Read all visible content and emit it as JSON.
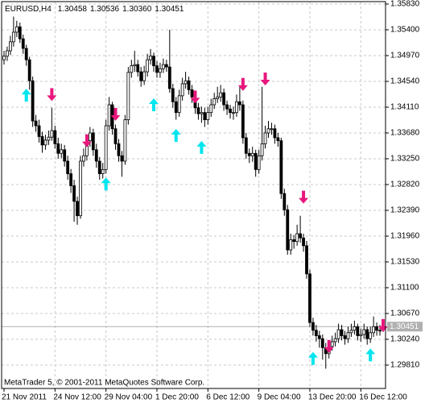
{
  "chart_data": {
    "type": "candlestick",
    "title": "EURUSD,H4",
    "header_ohlc": [
      "1.30458",
      "1.30536",
      "1.30360",
      "1.30451"
    ],
    "footer": "MetaTrader 5, © 2001-2011 MetaQuotes Software Corp.",
    "categories": [
      "21 Nov 2011",
      null,
      null,
      null,
      null,
      null,
      null,
      null,
      null,
      null,
      null,
      null,
      null,
      null,
      null,
      null,
      "24 Nov 12:00",
      null,
      null,
      null,
      null,
      null,
      null,
      null,
      null,
      null,
      null,
      null,
      null,
      null,
      null,
      null,
      "29 Nov 04:00",
      null,
      null,
      null,
      null,
      null,
      null,
      null,
      null,
      null,
      null,
      null,
      null,
      null,
      null,
      null,
      "1 Dec 20:00",
      null,
      null,
      null,
      null,
      null,
      null,
      null,
      null,
      null,
      null,
      null,
      null,
      null,
      null,
      null,
      "6 Dec 12:00",
      null,
      null,
      null,
      null,
      null,
      null,
      null,
      null,
      null,
      null,
      null,
      null,
      null,
      null,
      null,
      "9 Dec 04:00",
      null,
      null,
      null,
      null,
      null,
      null,
      null,
      null,
      null,
      null,
      null,
      null,
      null,
      null,
      null,
      "13 Dec 20:00",
      null,
      null,
      null,
      null,
      null,
      null,
      null,
      null,
      null,
      null,
      null,
      null,
      null,
      null,
      null,
      "16 Dec 12:00",
      null,
      null,
      null,
      null,
      null,
      null,
      null
    ],
    "open": [
      1.349,
      1.3496,
      1.3505,
      1.352,
      1.3536,
      1.3545,
      1.3525,
      1.3509,
      1.349,
      1.3455,
      1.3388,
      1.338,
      1.3362,
      1.3348,
      1.3356,
      1.3361,
      1.3372,
      1.335,
      1.3334,
      1.334,
      1.3321,
      1.33,
      1.328,
      1.3254,
      1.323,
      1.3321,
      1.333,
      1.3355,
      1.3368,
      1.334,
      1.3321,
      1.33,
      1.3307,
      1.338,
      1.3415,
      1.3375,
      1.335,
      1.333,
      1.3321,
      1.339,
      1.3469,
      1.348,
      1.3482,
      1.347,
      1.3455,
      1.347,
      1.349,
      1.3496,
      1.348,
      1.3469,
      1.3475,
      1.3482,
      1.3478,
      1.3442,
      1.342,
      1.3402,
      1.343,
      1.345,
      1.3455,
      1.344,
      1.3428,
      1.341,
      1.34,
      1.3402,
      1.339,
      1.3402,
      1.3415,
      1.3425,
      1.3428,
      1.3435,
      1.3415,
      1.3408,
      1.3402,
      1.3402,
      1.342,
      1.3415,
      1.336,
      1.3334,
      1.333,
      1.3334,
      1.3307,
      1.333,
      1.335,
      1.3368,
      1.3375,
      1.3375,
      1.336,
      1.3355,
      1.3267,
      1.324,
      1.3173,
      1.319,
      1.3187,
      1.32,
      1.3193,
      1.318,
      1.3133,
      1.3052,
      1.3039,
      1.303,
      1.3025,
      1.301,
      1.3,
      1.3012,
      1.302,
      1.3025,
      1.304,
      1.303,
      1.3025,
      1.3035,
      1.3039,
      1.3045,
      1.303,
      1.3032,
      1.304,
      1.3025,
      1.3035,
      1.3045,
      1.3039,
      1.30458
    ],
    "high": [
      1.3505,
      1.3512,
      1.353,
      1.3562,
      1.3555,
      1.3552,
      1.3532,
      1.3515,
      1.3495,
      1.3462,
      1.3398,
      1.339,
      1.337,
      1.3365,
      1.3372,
      1.341,
      1.338,
      1.336,
      1.335,
      1.3348,
      1.333,
      1.3308,
      1.329,
      1.3262,
      1.333,
      1.3342,
      1.3365,
      1.3378,
      1.3375,
      1.335,
      1.3328,
      1.3318,
      1.339,
      1.3428,
      1.342,
      1.3382,
      1.3358,
      1.3338,
      1.3398,
      1.3478,
      1.349,
      1.3505,
      1.349,
      1.3478,
      1.348,
      1.35,
      1.3508,
      1.3502,
      1.3488,
      1.3485,
      1.3492,
      1.349,
      1.354,
      1.345,
      1.3428,
      1.344,
      1.346,
      1.347,
      1.3462,
      1.3448,
      1.3435,
      1.3418,
      1.3412,
      1.341,
      1.3412,
      1.3425,
      1.3435,
      1.3445,
      1.3448,
      1.3442,
      1.3422,
      1.3415,
      1.3412,
      1.3432,
      1.3445,
      1.3422,
      1.3368,
      1.3342,
      1.3345,
      1.334,
      1.334,
      1.3445,
      1.338,
      1.3388,
      1.3385,
      1.3382,
      1.3368,
      1.336,
      1.3275,
      1.3248,
      1.32,
      1.3198,
      1.3215,
      1.323,
      1.32,
      1.3188,
      1.314,
      1.306,
      1.3048,
      1.3038,
      1.3032,
      1.3018,
      1.3022,
      1.303,
      1.3035,
      1.305,
      1.3048,
      1.3038,
      1.3045,
      1.305,
      1.3055,
      1.305,
      1.3042,
      1.305,
      1.3045,
      1.3045,
      1.3062,
      1.3052,
      1.3048,
      1.30536
    ],
    "low": [
      1.3482,
      1.3488,
      1.3498,
      1.3512,
      1.3528,
      1.3518,
      1.35,
      1.348,
      1.344,
      1.3378,
      1.337,
      1.3352,
      1.3335,
      1.334,
      1.3348,
      1.3355,
      1.3342,
      1.3325,
      1.3326,
      1.3312,
      1.329,
      1.3268,
      1.322,
      1.3215,
      1.3225,
      1.3312,
      1.3322,
      1.3345,
      1.333,
      1.331,
      1.329,
      1.3292,
      1.33,
      1.3372,
      1.3365,
      1.334,
      1.332,
      1.3295,
      1.3315,
      1.3382,
      1.346,
      1.347,
      1.3462,
      1.3445,
      1.3448,
      1.3462,
      1.3482,
      1.347,
      1.346,
      1.346,
      1.3468,
      1.347,
      1.3435,
      1.341,
      1.339,
      1.3395,
      1.3422,
      1.3442,
      1.3432,
      1.3418,
      1.34,
      1.339,
      1.3385,
      1.3378,
      1.3382,
      1.3395,
      1.3408,
      1.3418,
      1.342,
      1.3405,
      1.3398,
      1.3392,
      1.339,
      1.3395,
      1.3405,
      1.335,
      1.3325,
      1.3318,
      1.332,
      1.3295,
      1.33,
      1.3322,
      1.3342,
      1.336,
      1.3365,
      1.335,
      1.3345,
      1.3258,
      1.323,
      1.3165,
      1.3165,
      1.3175,
      1.318,
      1.3185,
      1.317,
      1.3125,
      1.3045,
      1.303,
      1.302,
      1.301,
      1.299,
      1.2975,
      1.2992,
      1.3005,
      1.3012,
      1.3018,
      1.3022,
      1.3015,
      1.3018,
      1.3028,
      1.3032,
      1.3022,
      1.302,
      1.3025,
      1.3015,
      1.3018,
      1.3028,
      1.303,
      1.303,
      1.3036
    ],
    "close": [
      1.3496,
      1.3505,
      1.352,
      1.3536,
      1.3545,
      1.3525,
      1.3509,
      1.349,
      1.3455,
      1.3388,
      1.338,
      1.3362,
      1.3348,
      1.3356,
      1.3361,
      1.3372,
      1.335,
      1.3334,
      1.334,
      1.3321,
      1.33,
      1.328,
      1.3254,
      1.323,
      1.3321,
      1.333,
      1.3355,
      1.3368,
      1.334,
      1.3321,
      1.33,
      1.3307,
      1.338,
      1.3415,
      1.3375,
      1.335,
      1.333,
      1.3321,
      1.339,
      1.3469,
      1.348,
      1.3482,
      1.347,
      1.3455,
      1.347,
      1.349,
      1.3496,
      1.348,
      1.3469,
      1.3475,
      1.3482,
      1.3478,
      1.3442,
      1.342,
      1.3402,
      1.343,
      1.345,
      1.3455,
      1.344,
      1.3428,
      1.341,
      1.34,
      1.3402,
      1.339,
      1.3402,
      1.3415,
      1.3425,
      1.3428,
      1.3435,
      1.3415,
      1.3408,
      1.3402,
      1.3402,
      1.342,
      1.3415,
      1.336,
      1.3334,
      1.333,
      1.3334,
      1.3307,
      1.333,
      1.335,
      1.3368,
      1.3375,
      1.3375,
      1.336,
      1.3355,
      1.3267,
      1.324,
      1.3173,
      1.319,
      1.3187,
      1.32,
      1.3193,
      1.318,
      1.3133,
      1.3052,
      1.3039,
      1.303,
      1.3025,
      1.301,
      1.3,
      1.3012,
      1.302,
      1.3025,
      1.304,
      1.303,
      1.3025,
      1.3035,
      1.3039,
      1.3045,
      1.303,
      1.3032,
      1.304,
      1.3025,
      1.3035,
      1.3045,
      1.3039,
      1.3038,
      1.30451
    ],
    "buy": {
      "color": "#00e5ee",
      "x": [
        7,
        32,
        47,
        54,
        62,
        97,
        115
      ],
      "y": [
        1.3431,
        1.3283,
        1.3415,
        1.3364,
        1.3344,
        1.2992,
        1.2998
      ]
    },
    "sell": {
      "color": "#e8177d",
      "x": [
        15,
        26,
        35,
        60,
        75,
        82,
        94,
        102,
        119
      ],
      "y": [
        1.3432,
        1.3355,
        1.3399,
        1.3428,
        1.3449,
        1.3458,
        1.3261,
        1.3012,
        1.3047
      ]
    },
    "ylim": [
      1.2942,
      1.3587
    ],
    "yticks": [
      {
        "value": 1.3583,
        "label": "1.35830"
      },
      {
        "value": 1.354,
        "label": "1.35400"
      },
      {
        "value": 1.3497,
        "label": "1.34970"
      },
      {
        "value": 1.3454,
        "label": "1.34540"
      },
      {
        "value": 1.3411,
        "label": "1.34110"
      },
      {
        "value": 1.3368,
        "label": "1.33680"
      },
      {
        "value": 1.3325,
        "label": "1.33250"
      },
      {
        "value": 1.3282,
        "label": "1.32820"
      },
      {
        "value": 1.3239,
        "label": "1.32390"
      },
      {
        "value": 1.3196,
        "label": "1.31960"
      },
      {
        "value": 1.3153,
        "label": "1.31530"
      },
      {
        "value": 1.311,
        "label": "1.31100"
      },
      {
        "value": 1.3067,
        "label": "1.30670"
      },
      {
        "value": 1.3024,
        "label": "1.30240"
      },
      {
        "value": 1.2981,
        "label": "1.29810"
      }
    ],
    "grid": true
  }
}
